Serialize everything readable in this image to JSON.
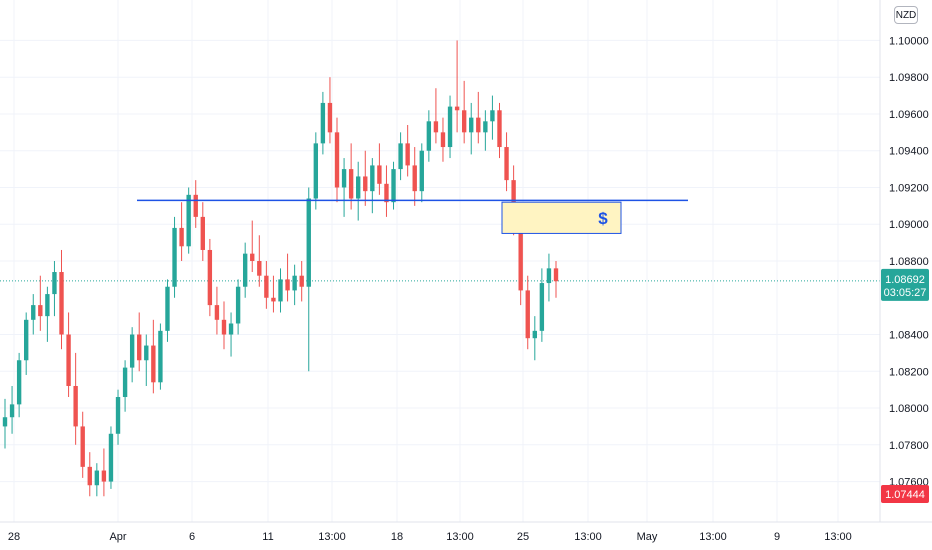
{
  "header": {
    "currency": "NZD"
  },
  "price_axis": {
    "labels": [
      "1.10000",
      "1.09800",
      "1.09600",
      "1.09400",
      "1.09200",
      "1.09000",
      "1.08800",
      "1.08400",
      "1.08200",
      "1.08000",
      "1.07800",
      "1.07600"
    ],
    "last_price": "1.08692",
    "countdown": "03:05:27",
    "low_marker": "1.07444",
    "colors": {
      "last_price_bg": "#26a69a",
      "low_marker_bg": "#f23645"
    }
  },
  "time_axis": {
    "labels": [
      "28",
      "Apr",
      "6",
      "11",
      "13:00",
      "18",
      "13:00",
      "25",
      "13:00",
      "May",
      "13:00",
      "9",
      "13:00"
    ]
  },
  "annotations": {
    "horizontal_line_price": 1.0913,
    "zone": {
      "top": 1.0912,
      "bottom": 1.0895,
      "label": "$"
    },
    "colors": {
      "line": "#1e53e5",
      "zone_fill": "#fff4c2",
      "zone_border": "#1e53e5"
    }
  },
  "chart_data": {
    "type": "candlestick",
    "symbol_currency": "NZD",
    "ylim": [
      1.0738,
      1.1022
    ],
    "colors": {
      "up": "#26a69a",
      "down": "#ef5350"
    },
    "ohlc": [
      [
        1.079,
        1.0805,
        1.0778,
        1.0795
      ],
      [
        1.0795,
        1.0812,
        1.0786,
        1.0802
      ],
      [
        1.0802,
        1.083,
        1.0795,
        1.0826
      ],
      [
        1.0826,
        1.0852,
        1.0818,
        1.0848
      ],
      [
        1.0848,
        1.0862,
        1.084,
        1.0856
      ],
      [
        1.0856,
        1.0872,
        1.0842,
        1.085
      ],
      [
        1.085,
        1.0866,
        1.0836,
        1.0862
      ],
      [
        1.0862,
        1.088,
        1.085,
        1.0874
      ],
      [
        1.0874,
        1.0886,
        1.0832,
        1.084
      ],
      [
        1.084,
        1.0852,
        1.0806,
        1.0812
      ],
      [
        1.0812,
        1.083,
        1.078,
        1.079
      ],
      [
        1.079,
        1.0798,
        1.0762,
        1.0768
      ],
      [
        1.0768,
        1.0776,
        1.0752,
        1.0758
      ],
      [
        1.0758,
        1.077,
        1.0752,
        1.0766
      ],
      [
        1.0766,
        1.0778,
        1.0752,
        1.076
      ],
      [
        1.076,
        1.079,
        1.0756,
        1.0786
      ],
      [
        1.0786,
        1.081,
        1.078,
        1.0806
      ],
      [
        1.0806,
        1.0826,
        1.0798,
        1.0822
      ],
      [
        1.0822,
        1.0844,
        1.0814,
        1.084
      ],
      [
        1.084,
        1.0852,
        1.082,
        1.0826
      ],
      [
        1.0826,
        1.084,
        1.0812,
        1.0834
      ],
      [
        1.0834,
        1.0848,
        1.0808,
        1.0814
      ],
      [
        1.0814,
        1.0846,
        1.081,
        1.0842
      ],
      [
        1.0842,
        1.087,
        1.0836,
        1.0866
      ],
      [
        1.0866,
        1.0904,
        1.086,
        1.0898
      ],
      [
        1.0898,
        1.0912,
        1.088,
        1.0888
      ],
      [
        1.0888,
        1.092,
        1.0884,
        1.0916
      ],
      [
        1.0916,
        1.0924,
        1.0898,
        1.0904
      ],
      [
        1.0904,
        1.0912,
        1.088,
        1.0886
      ],
      [
        1.0886,
        1.0892,
        1.085,
        1.0856
      ],
      [
        1.0856,
        1.0866,
        1.084,
        1.0848
      ],
      [
        1.0848,
        1.0858,
        1.0832,
        1.084
      ],
      [
        1.084,
        1.0852,
        1.0828,
        1.0846
      ],
      [
        1.0846,
        1.087,
        1.084,
        1.0866
      ],
      [
        1.0866,
        1.089,
        1.086,
        1.0884
      ],
      [
        1.0884,
        1.0902,
        1.0874,
        1.088
      ],
      [
        1.088,
        1.0894,
        1.0866,
        1.0872
      ],
      [
        1.0872,
        1.088,
        1.0854,
        1.086
      ],
      [
        1.086,
        1.0872,
        1.0852,
        1.0858
      ],
      [
        1.0858,
        1.0876,
        1.0852,
        1.087
      ],
      [
        1.087,
        1.0884,
        1.0858,
        1.0864
      ],
      [
        1.0864,
        1.0878,
        1.0856,
        1.0872
      ],
      [
        1.0872,
        1.088,
        1.0858,
        1.0866
      ],
      [
        1.0866,
        1.092,
        1.082,
        1.0914
      ],
      [
        1.0914,
        1.095,
        1.0908,
        1.0944
      ],
      [
        1.0944,
        1.0972,
        1.0938,
        1.0966
      ],
      [
        1.0966,
        1.098,
        1.0944,
        1.095
      ],
      [
        1.095,
        1.0958,
        1.0912,
        1.092
      ],
      [
        1.092,
        1.0936,
        1.0904,
        1.093
      ],
      [
        1.093,
        1.0944,
        1.0908,
        1.0914
      ],
      [
        1.0914,
        1.0934,
        1.0902,
        1.0926
      ],
      [
        1.0926,
        1.094,
        1.091,
        1.0918
      ],
      [
        1.0918,
        1.0936,
        1.0906,
        1.0932
      ],
      [
        1.0932,
        1.0944,
        1.0916,
        1.0922
      ],
      [
        1.0922,
        1.0932,
        1.0904,
        1.0912
      ],
      [
        1.0912,
        1.0934,
        1.0908,
        1.093
      ],
      [
        1.093,
        1.095,
        1.0924,
        1.0944
      ],
      [
        1.0944,
        1.0954,
        1.0926,
        1.0932
      ],
      [
        1.0932,
        1.0942,
        1.091,
        1.0918
      ],
      [
        1.0918,
        1.0944,
        1.0912,
        1.094
      ],
      [
        1.094,
        1.0962,
        1.0934,
        1.0956
      ],
      [
        1.0956,
        1.0974,
        1.0944,
        1.095
      ],
      [
        1.095,
        1.0958,
        1.0934,
        1.0942
      ],
      [
        1.0942,
        1.097,
        1.0936,
        1.0964
      ],
      [
        1.0964,
        1.1,
        1.095,
        1.0962
      ],
      [
        1.0962,
        1.0978,
        1.0944,
        1.095
      ],
      [
        1.095,
        1.0966,
        1.0938,
        1.0958
      ],
      [
        1.0958,
        1.0972,
        1.0944,
        1.095
      ],
      [
        1.095,
        1.0962,
        1.094,
        1.0956
      ],
      [
        1.0956,
        1.097,
        1.0946,
        1.0962
      ],
      [
        1.0962,
        1.0966,
        1.0936,
        1.0942
      ],
      [
        1.0942,
        1.095,
        1.0918,
        1.0924
      ],
      [
        1.0924,
        1.0932,
        1.0894,
        1.09
      ],
      [
        1.09,
        1.0904,
        1.0856,
        1.0864
      ],
      [
        1.0864,
        1.0872,
        1.0832,
        1.0838
      ],
      [
        1.0838,
        1.085,
        1.0826,
        1.0842
      ],
      [
        1.0842,
        1.0876,
        1.0836,
        1.0868
      ],
      [
        1.0868,
        1.0884,
        1.0858,
        1.0876
      ],
      [
        1.0876,
        1.088,
        1.086,
        1.0869
      ]
    ]
  }
}
